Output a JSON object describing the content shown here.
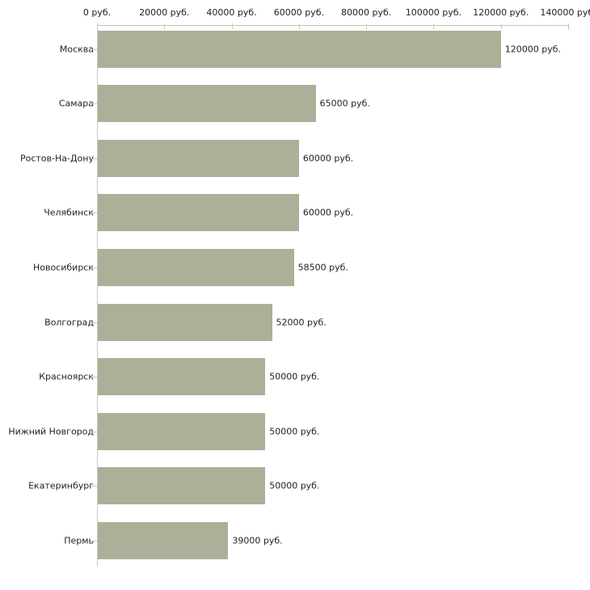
{
  "page": {
    "background": "#ffffff"
  },
  "chart_data": {
    "type": "bar",
    "orientation": "horizontal",
    "title": "",
    "unit": "руб.",
    "categories": [
      "Москва",
      "Самара",
      "Ростов-На-Дону",
      "Челябинск",
      "Новосибирск",
      "Волгоград",
      "Красноярск",
      "Нижний Новгород",
      "Екатеринбург",
      "Пермь"
    ],
    "values": [
      120000,
      65000,
      60000,
      60000,
      58500,
      52000,
      50000,
      50000,
      50000,
      39000
    ],
    "bar_labels": [
      "120000 руб.",
      "65000 руб.",
      "60000 руб.",
      "60000 руб.",
      "58500 руб.",
      "52000 руб.",
      "50000 руб.",
      "50000 руб.",
      "50000 руб.",
      "39000 руб."
    ],
    "x_axis": {
      "position": "top",
      "min": 0,
      "max": 140000,
      "tick_interval": 20000,
      "tick_labels": [
        "0 руб.",
        "20000 руб.",
        "40000 руб.",
        "60000 руб.",
        "80000 руб.",
        "100000 руб.",
        "120000 руб.",
        "140000 руб."
      ]
    },
    "grid": false,
    "legend": false,
    "colors": {
      "bar": "#abb198",
      "axis_line": "#c2c2c2",
      "tick": "#ccd0ae",
      "text": "#1e1e1e",
      "background": "#ffffff"
    }
  }
}
